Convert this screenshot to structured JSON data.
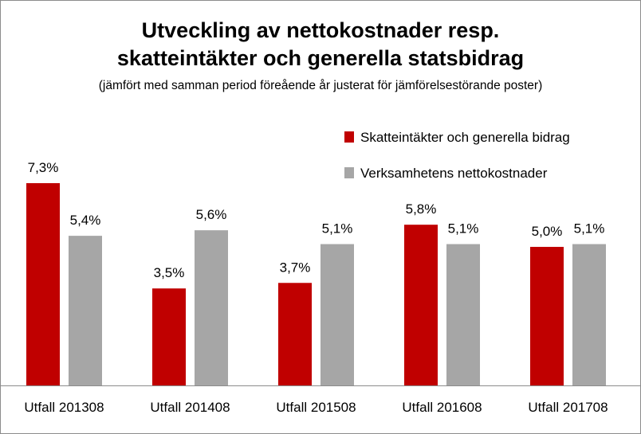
{
  "chart_data": {
    "type": "bar",
    "title_line1": "Utveckling av nettokostnader resp.",
    "title_line2": "skatteintäkter och generella statsbidrag",
    "subtitle": "(jämfört med samman period föreående år justerat för jämförelsestörande poster)",
    "categories": [
      "Utfall 201308",
      "Utfall 201408",
      "Utfall 201508",
      "Utfall 201608",
      "Utfall 201708"
    ],
    "series": [
      {
        "name": "Skatteintäkter och generella bidrag",
        "color": "#c00000",
        "values": [
          7.3,
          3.5,
          3.7,
          5.8,
          5.0
        ],
        "labels": [
          "7,3%",
          "3,5%",
          "3,7%",
          "5,8%",
          "5,0%"
        ]
      },
      {
        "name": "Verksamhetens nettokostnader",
        "color": "#a6a6a6",
        "values": [
          5.4,
          5.6,
          5.1,
          5.1,
          5.1
        ],
        "labels": [
          "5,4%",
          "5,6%",
          "5,1%",
          "5,1%",
          "5,1%"
        ]
      }
    ],
    "ylim": [
      0,
      7.3
    ],
    "legend_position": "top-right",
    "grid": false
  }
}
